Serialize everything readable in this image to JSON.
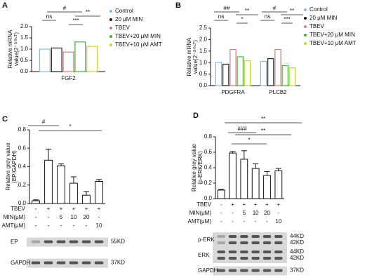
{
  "chart_data": [
    {
      "type": "bar",
      "panel_label": "A",
      "ylabel": [
        "Relative mRNA",
        "value(2⁻ᐞᐞᶜᵀ)"
      ],
      "categories": [
        "FGF2"
      ],
      "series": [
        {
          "name": "Control",
          "color": "#8fb4e3",
          "values": [
            1.0
          ]
        },
        {
          "name": "20 μM MIN",
          "color": "#222222",
          "values": [
            1.05
          ]
        },
        {
          "name": "TBEV",
          "color": "#e07b7b",
          "values": [
            0.87
          ]
        },
        {
          "name": "TBEV+20 μM MIN",
          "color": "#3cb43c",
          "values": [
            1.32
          ]
        },
        {
          "name": "TBEV+10 μM AMT",
          "color": "#c8d23c",
          "values": [
            1.12
          ]
        }
      ],
      "ylim": [
        0,
        2.0
      ],
      "yticks": [
        {
          "value": 0,
          "label": "0.0"
        },
        0.5,
        {
          "value": 1,
          "label": "1.0"
        },
        1.5,
        {
          "value": 2,
          "label": "2.0"
        }
      ],
      "annotations": [
        "ns",
        "#",
        "***",
        "**"
      ]
    },
    {
      "type": "bar",
      "panel_label": "B",
      "ylabel": [
        "Relative mRNA",
        "value(2⁻ᐞᐞᶜᵀ)"
      ],
      "categories": [
        "PDGFRA",
        "PLCB2"
      ],
      "series": [
        {
          "name": "Control",
          "color": "#8fb4e3",
          "values": [
            1.02,
            1.05
          ]
        },
        {
          "name": "20 μM MIN",
          "color": "#222222",
          "values": [
            0.93,
            1.17
          ]
        },
        {
          "name": "TBEV",
          "color": "#e07b7b",
          "values": [
            1.57,
            1.57
          ]
        },
        {
          "name": "TBEV+20 μM MIN",
          "color": "#3cb43c",
          "values": [
            1.25,
            0.87
          ]
        },
        {
          "name": "TBEV+10 μM AMT",
          "color": "#c8d23c",
          "values": [
            1.08,
            0.77
          ]
        }
      ],
      "ylim": [
        0,
        2.5
      ],
      "yticks": [
        {
          "value": 0,
          "label": "0.0"
        },
        0.5,
        {
          "value": 1,
          "label": "1.0"
        },
        1.5,
        {
          "value": 2,
          "label": "2.0"
        },
        2.5
      ],
      "annotations": [
        "ns",
        "##",
        "*",
        "**",
        "ns",
        "#",
        "***",
        "**"
      ]
    },
    {
      "type": "errorbar",
      "panel_label": "C",
      "ylabel": [
        "Relative grey value",
        "(EP/GAPDH)"
      ],
      "categories": [
        null,
        null,
        null,
        null,
        null,
        null
      ],
      "values": [
        0.03,
        0.47,
        0.41,
        0.22,
        0.09,
        0.24
      ],
      "errors": [
        0.01,
        0.12,
        0.02,
        0.07,
        0.04,
        0.02
      ],
      "color": "#ffffff",
      "ylim": [
        0,
        0.8
      ],
      "yticks": [
        {
          "value": 0,
          "label": "0.0"
        },
        0.2,
        0.4,
        0.6,
        0.8
      ],
      "annotations": [
        "#",
        "*"
      ],
      "conditions": [
        {
          "name": "TBEV",
          "values": [
            "-",
            "+",
            "+",
            "+",
            "+",
            "+"
          ]
        },
        {
          "name": "MIN(μM)",
          "values": [
            "-",
            "-",
            "5",
            "10",
            "20",
            "-"
          ]
        },
        {
          "name": "AMT(μM)",
          "values": [
            "-",
            "-",
            "-",
            "-",
            "-",
            "10"
          ]
        }
      ],
      "blots": [
        {
          "name": "EP",
          "sizes": [
            "55KD"
          ]
        },
        {
          "name": "GAPDH",
          "sizes": [
            "37KD"
          ]
        }
      ]
    },
    {
      "type": "errorbar",
      "panel_label": "D",
      "ylabel": [
        "Relative grey value",
        "(p-ERK/ERK)"
      ],
      "categories": [
        null,
        null,
        null,
        null,
        null,
        null
      ],
      "values": [
        0.11,
        0.59,
        0.51,
        0.39,
        0.3,
        0.36
      ],
      "errors": [
        0.01,
        0.02,
        0.11,
        0.06,
        0.05,
        0.03
      ],
      "color": "#ffffff",
      "ylim": [
        0,
        0.8
      ],
      "yticks": [
        {
          "value": 0,
          "label": "0.0"
        },
        0.2,
        0.4,
        0.6,
        0.8
      ],
      "annotations": [
        "**",
        "###",
        "**",
        "*"
      ],
      "conditions": [
        {
          "name": "TBEV",
          "values": [
            "-",
            "+",
            "+",
            "+",
            "+",
            "+"
          ]
        },
        {
          "name": "MIN(μM)",
          "values": [
            "-",
            "-",
            "5",
            "10",
            "20",
            "-"
          ]
        },
        {
          "name": "AMT(μM)",
          "values": [
            "-",
            "-",
            "-",
            "-",
            "-",
            "10"
          ]
        }
      ],
      "blots": [
        {
          "name": "p-ERK",
          "sizes": [
            "44KD",
            "42KD"
          ]
        },
        {
          "name": "ERK",
          "sizes": [
            "44KD",
            "42KD"
          ]
        },
        {
          "name": "GAPDH",
          "sizes": [
            "37KD"
          ]
        }
      ]
    }
  ]
}
